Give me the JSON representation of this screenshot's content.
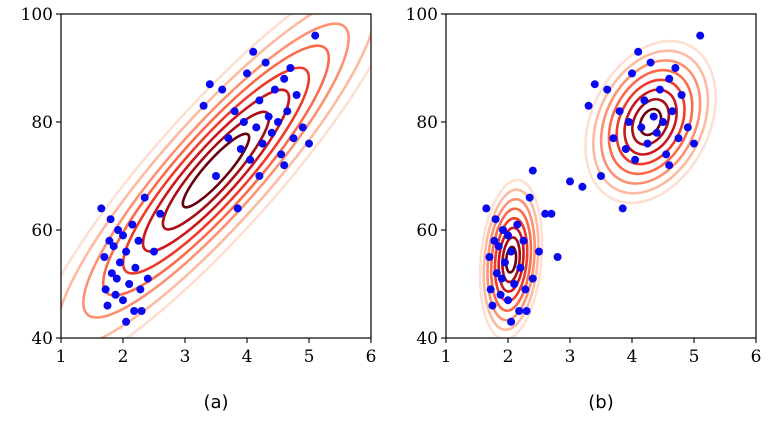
{
  "chart_data": [
    {
      "type": "scatter",
      "panel_label": "(a)",
      "title": "",
      "xlabel": "",
      "ylabel": "",
      "xlim": [
        1,
        6
      ],
      "ylim": [
        40,
        100
      ],
      "xticks": [
        "1",
        "2",
        "3",
        "4",
        "5",
        "6"
      ],
      "yticks": [
        "40",
        "60",
        "80",
        "100"
      ],
      "grid": false,
      "points": [
        [
          1.65,
          64
        ],
        [
          1.7,
          55
        ],
        [
          1.72,
          49
        ],
        [
          1.75,
          46
        ],
        [
          1.8,
          62
        ],
        [
          1.82,
          52
        ],
        [
          1.85,
          57
        ],
        [
          1.88,
          48
        ],
        [
          1.9,
          51
        ],
        [
          1.95,
          54
        ],
        [
          2.0,
          47
        ],
        [
          2.0,
          59
        ],
        [
          2.05,
          43
        ],
        [
          2.05,
          56
        ],
        [
          2.1,
          50
        ],
        [
          2.15,
          61
        ],
        [
          2.2,
          53
        ],
        [
          2.25,
          58
        ],
        [
          2.3,
          45
        ],
        [
          2.35,
          66
        ],
        [
          2.4,
          51
        ],
        [
          2.5,
          56
        ],
        [
          2.6,
          63
        ],
        [
          1.78,
          58
        ],
        [
          1.92,
          60
        ],
        [
          2.18,
          45
        ],
        [
          2.28,
          49
        ],
        [
          3.3,
          83
        ],
        [
          3.4,
          87
        ],
        [
          3.5,
          70
        ],
        [
          3.6,
          86
        ],
        [
          3.7,
          77
        ],
        [
          3.8,
          82
        ],
        [
          3.85,
          64
        ],
        [
          3.9,
          75
        ],
        [
          4.0,
          89
        ],
        [
          4.05,
          73
        ],
        [
          4.1,
          93
        ],
        [
          4.15,
          79
        ],
        [
          4.2,
          84
        ],
        [
          4.25,
          76
        ],
        [
          4.3,
          91
        ],
        [
          4.35,
          81
        ],
        [
          4.4,
          78
        ],
        [
          4.45,
          86
        ],
        [
          4.5,
          80
        ],
        [
          4.55,
          74
        ],
        [
          4.6,
          88
        ],
        [
          4.65,
          82
        ],
        [
          4.7,
          90
        ],
        [
          4.75,
          77
        ],
        [
          4.8,
          85
        ],
        [
          4.9,
          79
        ],
        [
          5.0,
          76
        ],
        [
          5.1,
          96
        ],
        [
          4.2,
          70
        ],
        [
          3.95,
          80
        ],
        [
          4.6,
          72
        ]
      ],
      "contours": {
        "kind": "single-gaussian",
        "mean": [
          3.5,
          71
        ],
        "std": [
          1.07,
          13.6
        ],
        "correlation": 0.9,
        "levels_sigma": [
          0.5,
          0.8,
          1.1,
          1.4,
          1.7,
          2.0,
          2.4,
          2.8
        ],
        "colors": [
          "#67000d",
          "#a50f15",
          "#cb181d",
          "#ef3b2c",
          "#fb6a4a",
          "#fc9272",
          "#fcbba1",
          "#fee0d2"
        ]
      }
    },
    {
      "type": "scatter",
      "panel_label": "(b)",
      "title": "",
      "xlabel": "",
      "ylabel": "",
      "xlim": [
        1,
        6
      ],
      "ylim": [
        40,
        100
      ],
      "xticks": [
        "1",
        "2",
        "3",
        "4",
        "5",
        "6"
      ],
      "yticks": [
        "40",
        "60",
        "80",
        "100"
      ],
      "grid": false,
      "points": [
        [
          1.65,
          64
        ],
        [
          1.7,
          55
        ],
        [
          1.72,
          49
        ],
        [
          1.75,
          46
        ],
        [
          1.8,
          62
        ],
        [
          1.82,
          52
        ],
        [
          1.85,
          57
        ],
        [
          1.88,
          48
        ],
        [
          1.9,
          51
        ],
        [
          1.95,
          54
        ],
        [
          2.0,
          47
        ],
        [
          2.0,
          59
        ],
        [
          2.05,
          43
        ],
        [
          2.05,
          56
        ],
        [
          2.1,
          50
        ],
        [
          2.15,
          61
        ],
        [
          2.2,
          53
        ],
        [
          2.25,
          58
        ],
        [
          2.3,
          45
        ],
        [
          2.35,
          66
        ],
        [
          2.4,
          51
        ],
        [
          2.5,
          56
        ],
        [
          2.6,
          63
        ],
        [
          1.78,
          58
        ],
        [
          1.92,
          60
        ],
        [
          2.18,
          45
        ],
        [
          2.28,
          49
        ],
        [
          2.4,
          71
        ],
        [
          2.7,
          63
        ],
        [
          2.8,
          55
        ],
        [
          3.0,
          69
        ],
        [
          3.2,
          68
        ],
        [
          3.3,
          83
        ],
        [
          3.4,
          87
        ],
        [
          3.5,
          70
        ],
        [
          3.6,
          86
        ],
        [
          3.7,
          77
        ],
        [
          3.8,
          82
        ],
        [
          3.85,
          64
        ],
        [
          3.9,
          75
        ],
        [
          4.0,
          89
        ],
        [
          4.05,
          73
        ],
        [
          4.1,
          93
        ],
        [
          4.15,
          79
        ],
        [
          4.2,
          84
        ],
        [
          4.25,
          76
        ],
        [
          4.3,
          91
        ],
        [
          4.35,
          81
        ],
        [
          4.4,
          78
        ],
        [
          4.45,
          86
        ],
        [
          4.5,
          80
        ],
        [
          4.55,
          74
        ],
        [
          4.6,
          88
        ],
        [
          4.65,
          82
        ],
        [
          4.7,
          90
        ],
        [
          4.75,
          77
        ],
        [
          4.8,
          85
        ],
        [
          4.9,
          79
        ],
        [
          5.0,
          76
        ],
        [
          5.1,
          96
        ],
        [
          3.95,
          80
        ],
        [
          4.6,
          72
        ]
      ],
      "contours": {
        "kind": "two-gaussian-mixture",
        "components": [
          {
            "mean": [
              2.05,
              54.5
            ],
            "std": [
              0.2,
              5.9
            ],
            "correlation": 0.2
          },
          {
            "mean": [
              4.3,
              80
            ],
            "std": [
              0.42,
              6.0
            ],
            "correlation": 0.3
          }
        ],
        "levels_sigma": [
          0.4,
          0.7,
          1.0,
          1.3,
          1.6,
          1.9,
          2.2,
          2.5
        ],
        "colors": [
          "#67000d",
          "#a50f15",
          "#cb181d",
          "#ef3b2c",
          "#fb6a4a",
          "#fc9272",
          "#fcbba1",
          "#fee0d2"
        ]
      }
    }
  ]
}
